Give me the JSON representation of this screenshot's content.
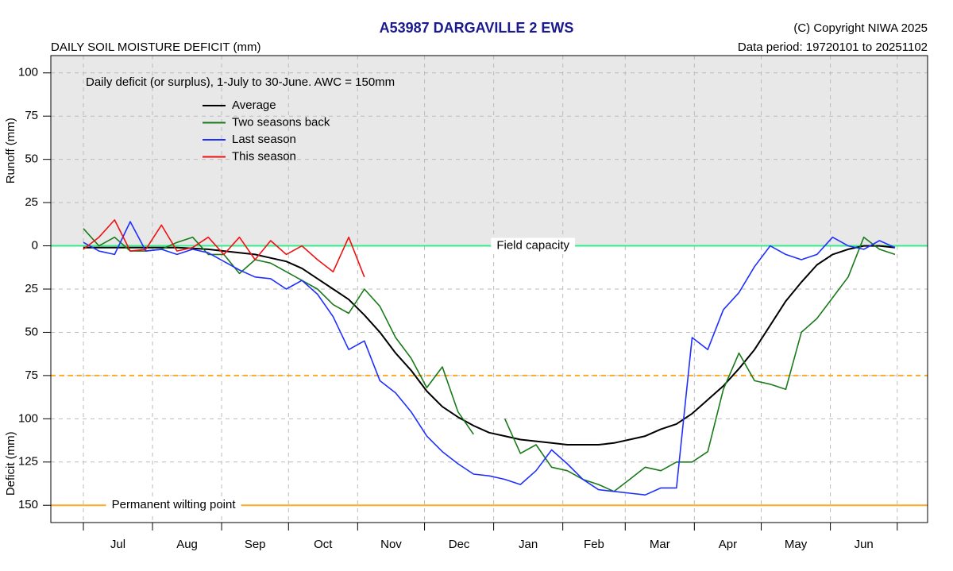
{
  "chart_data": {
    "type": "line",
    "title": "A53987  DARGAVILLE 2 EWS",
    "subtitle": "DAILY SOIL MOISTURE DEFICIT (mm)",
    "copyright": "(C) Copyright NIWA  2025",
    "data_period": "Data period:  19720101  to  20251102",
    "annotation": "Daily deficit (or surplus), 1-July to 30-June.  AWC = 150mm",
    "y_label_upper": "Runoff (mm)",
    "y_label_lower": "Deficit (mm)",
    "xlim": [
      -14.6,
      378.6
    ],
    "ylim": [
      -160,
      110
    ],
    "xticks": [
      0,
      31,
      62,
      92,
      123,
      153,
      184,
      215,
      243,
      274,
      304,
      335,
      365
    ],
    "categories": [
      "Jul",
      "Aug",
      "Sep",
      "Oct",
      "Nov",
      "Dec",
      "Jan",
      "Feb",
      "Mar",
      "Apr",
      "May",
      "Jun"
    ],
    "yticks": [
      100,
      75,
      50,
      25,
      0,
      {
        "value": -25,
        "label": "25"
      },
      {
        "value": -50,
        "label": "50"
      },
      {
        "value": -75,
        "label": "75"
      },
      {
        "value": -100,
        "label": "100"
      },
      {
        "value": -125,
        "label": "125"
      },
      {
        "value": -150,
        "label": "150"
      }
    ],
    "grid": true,
    "legend": "top-left",
    "reference_lines": [
      {
        "value": 0,
        "label": "Field capacity",
        "color": "#33ee88"
      },
      {
        "value": -150,
        "label": "Permanent wilting point",
        "color": "#ffaa22"
      },
      {
        "value": -75,
        "color": "#ffaa22",
        "style": "dashed"
      }
    ],
    "x": [
      0,
      7,
      14,
      21,
      28,
      35,
      42,
      49,
      56,
      63,
      70,
      77,
      84,
      91,
      98,
      105,
      112,
      119,
      126,
      133,
      140,
      147,
      154,
      161,
      168,
      175,
      182,
      189,
      196,
      203,
      210,
      217,
      224,
      231,
      238,
      245,
      252,
      259,
      266,
      273,
      280,
      287,
      294,
      301,
      308,
      315,
      322,
      329,
      336,
      343,
      350,
      357,
      364
    ],
    "series": [
      {
        "name": "Average",
        "color": "#000000",
        "width": 2,
        "values": [
          -1,
          -1,
          -1,
          -1,
          -1,
          -1,
          -1,
          -1.5,
          -2,
          -3,
          -4,
          -5,
          -7,
          -9,
          -13,
          -19,
          -25,
          -31,
          -40,
          -50,
          -62,
          -72,
          -84,
          -93,
          -99,
          -104,
          -108,
          -110,
          -112,
          -113,
          -114,
          -115,
          -115,
          -115,
          -114,
          -112,
          -110,
          -106,
          -103,
          -97,
          -89,
          -81,
          -71,
          -60,
          -46,
          -32,
          -21,
          -11,
          -5,
          -2,
          0,
          0,
          -1
        ]
      },
      {
        "name": "Two seasons back",
        "color": "#1a7a1a",
        "width": 1.6,
        "values": [
          10,
          0,
          5,
          -3,
          -3,
          -2,
          2,
          5,
          -5,
          -5,
          -16,
          -8,
          -10,
          -15,
          -20,
          -25,
          -34,
          -39,
          -25,
          -35,
          -53,
          -65,
          -82,
          -70,
          -96,
          -109,
          null,
          -100,
          -120,
          -115,
          -128,
          -130,
          -135,
          -138,
          -142,
          -135,
          -128,
          -130,
          -125,
          -125,
          -119,
          -83,
          -62,
          -78,
          -80,
          -83,
          -50,
          -42,
          -30,
          -18,
          5,
          -2,
          -5
        ]
      },
      {
        "name": "Last season",
        "color": "#1f2fff",
        "width": 1.6,
        "values": [
          2,
          -3,
          -5,
          14,
          -3,
          -2,
          -5,
          -2,
          -4,
          -9,
          -14,
          -18,
          -19,
          -25,
          -20,
          -28,
          -41,
          -60,
          -55,
          -78,
          -85,
          -96,
          -110,
          -119,
          -126,
          -132,
          -133,
          -135,
          -138,
          -130,
          -118,
          -126,
          -135,
          -141,
          -142,
          -143,
          -144,
          -140,
          -140,
          -53,
          -60,
          -37,
          -27,
          -12,
          0,
          -5,
          -8,
          -5,
          5,
          0,
          -2,
          3,
          -1
        ]
      },
      {
        "name": "This season",
        "color": "#ee1111",
        "width": 1.6,
        "values": [
          -2,
          5,
          15,
          -3,
          -2,
          12,
          -3,
          -1,
          5,
          -5,
          5,
          -8,
          3,
          -5,
          0,
          -8,
          -15,
          5,
          -18,
          null,
          null,
          null,
          null,
          null,
          null,
          null,
          null,
          null,
          null,
          null,
          null,
          null,
          null,
          null,
          null,
          null,
          null,
          null,
          null,
          null,
          null,
          null,
          null,
          null,
          null,
          null,
          null,
          null,
          null,
          null,
          null,
          null,
          null
        ]
      }
    ]
  }
}
